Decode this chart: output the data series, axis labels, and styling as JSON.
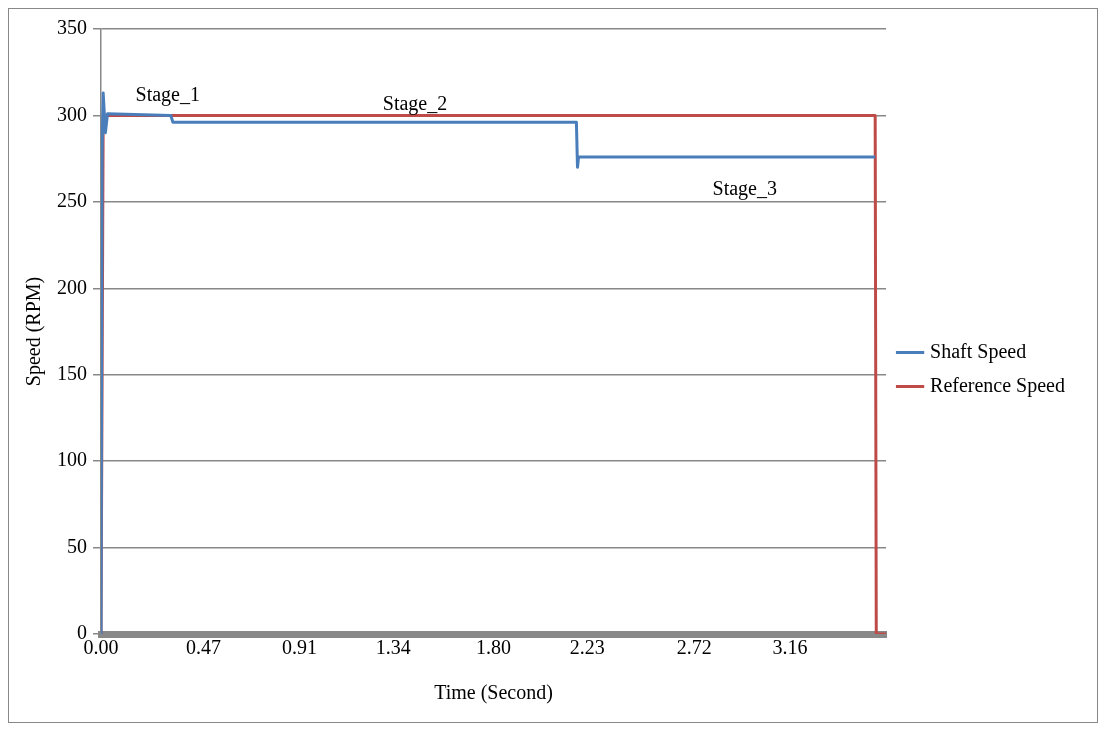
{
  "chart_data": {
    "type": "line",
    "xlabel": "Time (Second)",
    "ylabel": "Speed (RPM)",
    "xlim": [
      0,
      3.6
    ],
    "xticks": [
      {
        "value": 0,
        "label": "0.00"
      },
      0.47,
      0.91,
      1.34,
      {
        "value": 1.8,
        "label": "1.80"
      },
      2.23,
      2.72,
      3.16
    ],
    "ylim": [
      0,
      350
    ],
    "yticks": [
      0,
      50,
      100,
      150,
      200,
      250,
      300,
      350
    ],
    "grid": "y",
    "legend": "right",
    "series": [
      {
        "name": "Shaft Speed",
        "color": "#4a7ebb",
        "x": [
          0,
          0.005,
          0.01,
          0.02,
          0.03,
          0.32,
          0.33,
          2.18,
          2.185,
          2.19,
          3.55
        ],
        "values": [
          0,
          280,
          313,
          290,
          301,
          300,
          296,
          296,
          270,
          276,
          276
        ]
      },
      {
        "name": "Reference Speed",
        "color": "#be4b48",
        "x": [
          0,
          0.01,
          3.55,
          3.555,
          3.6
        ],
        "values": [
          0,
          300,
          300,
          0,
          0
        ]
      }
    ],
    "annotations": [
      "Stage_1",
      "Stage_2",
      "Stage_3"
    ]
  }
}
